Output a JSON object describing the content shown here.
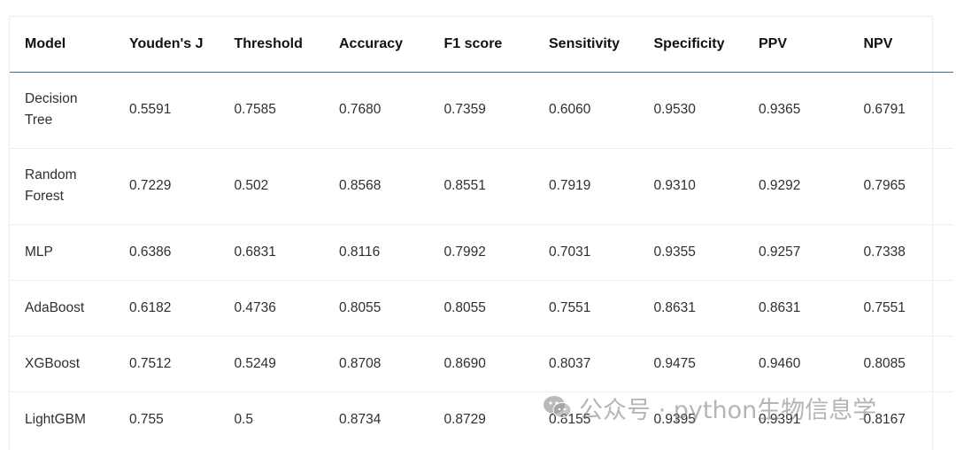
{
  "table": {
    "headers": [
      "Model",
      "Youden's J",
      "Threshold",
      "Accuracy",
      "F1 score",
      "Sensitivity",
      "Specificity",
      "PPV",
      "NPV"
    ],
    "rows": [
      {
        "model": "Decision Tree",
        "youden": "0.5591",
        "threshold": "0.7585",
        "accuracy": "0.7680",
        "f1": "0.7359",
        "sensitivity": "0.6060",
        "specificity": "0.9530",
        "ppv": "0.9365",
        "npv": "0.6791"
      },
      {
        "model": "Random Forest",
        "youden": "0.7229",
        "threshold": "0.502",
        "accuracy": "0.8568",
        "f1": "0.8551",
        "sensitivity": "0.7919",
        "specificity": "0.9310",
        "ppv": "0.9292",
        "npv": "0.7965"
      },
      {
        "model": "MLP",
        "youden": "0.6386",
        "threshold": "0.6831",
        "accuracy": "0.8116",
        "f1": "0.7992",
        "sensitivity": "0.7031",
        "specificity": "0.9355",
        "ppv": "0.9257",
        "npv": "0.7338"
      },
      {
        "model": "AdaBoost",
        "youden": "0.6182",
        "threshold": "0.4736",
        "accuracy": "0.8055",
        "f1": "0.8055",
        "sensitivity": "0.7551",
        "specificity": "0.8631",
        "ppv": "0.8631",
        "npv": "0.7551"
      },
      {
        "model": "XGBoost",
        "youden": "0.7512",
        "threshold": "0.5249",
        "accuracy": "0.8708",
        "f1": "0.8690",
        "sensitivity": "0.8037",
        "specificity": "0.9475",
        "ppv": "0.9460",
        "npv": "0.8085"
      },
      {
        "model": "LightGBM",
        "youden": "0.755",
        "threshold": "0.5",
        "accuracy": "0.8734",
        "f1": "0.8729",
        "sensitivity": "0.8155",
        "specificity": "0.9395",
        "ppv": "0.9391",
        "npv": "0.8167"
      }
    ]
  },
  "watermark": {
    "text": "公众号 · python生物信息学",
    "icon": "wechat-icon"
  }
}
